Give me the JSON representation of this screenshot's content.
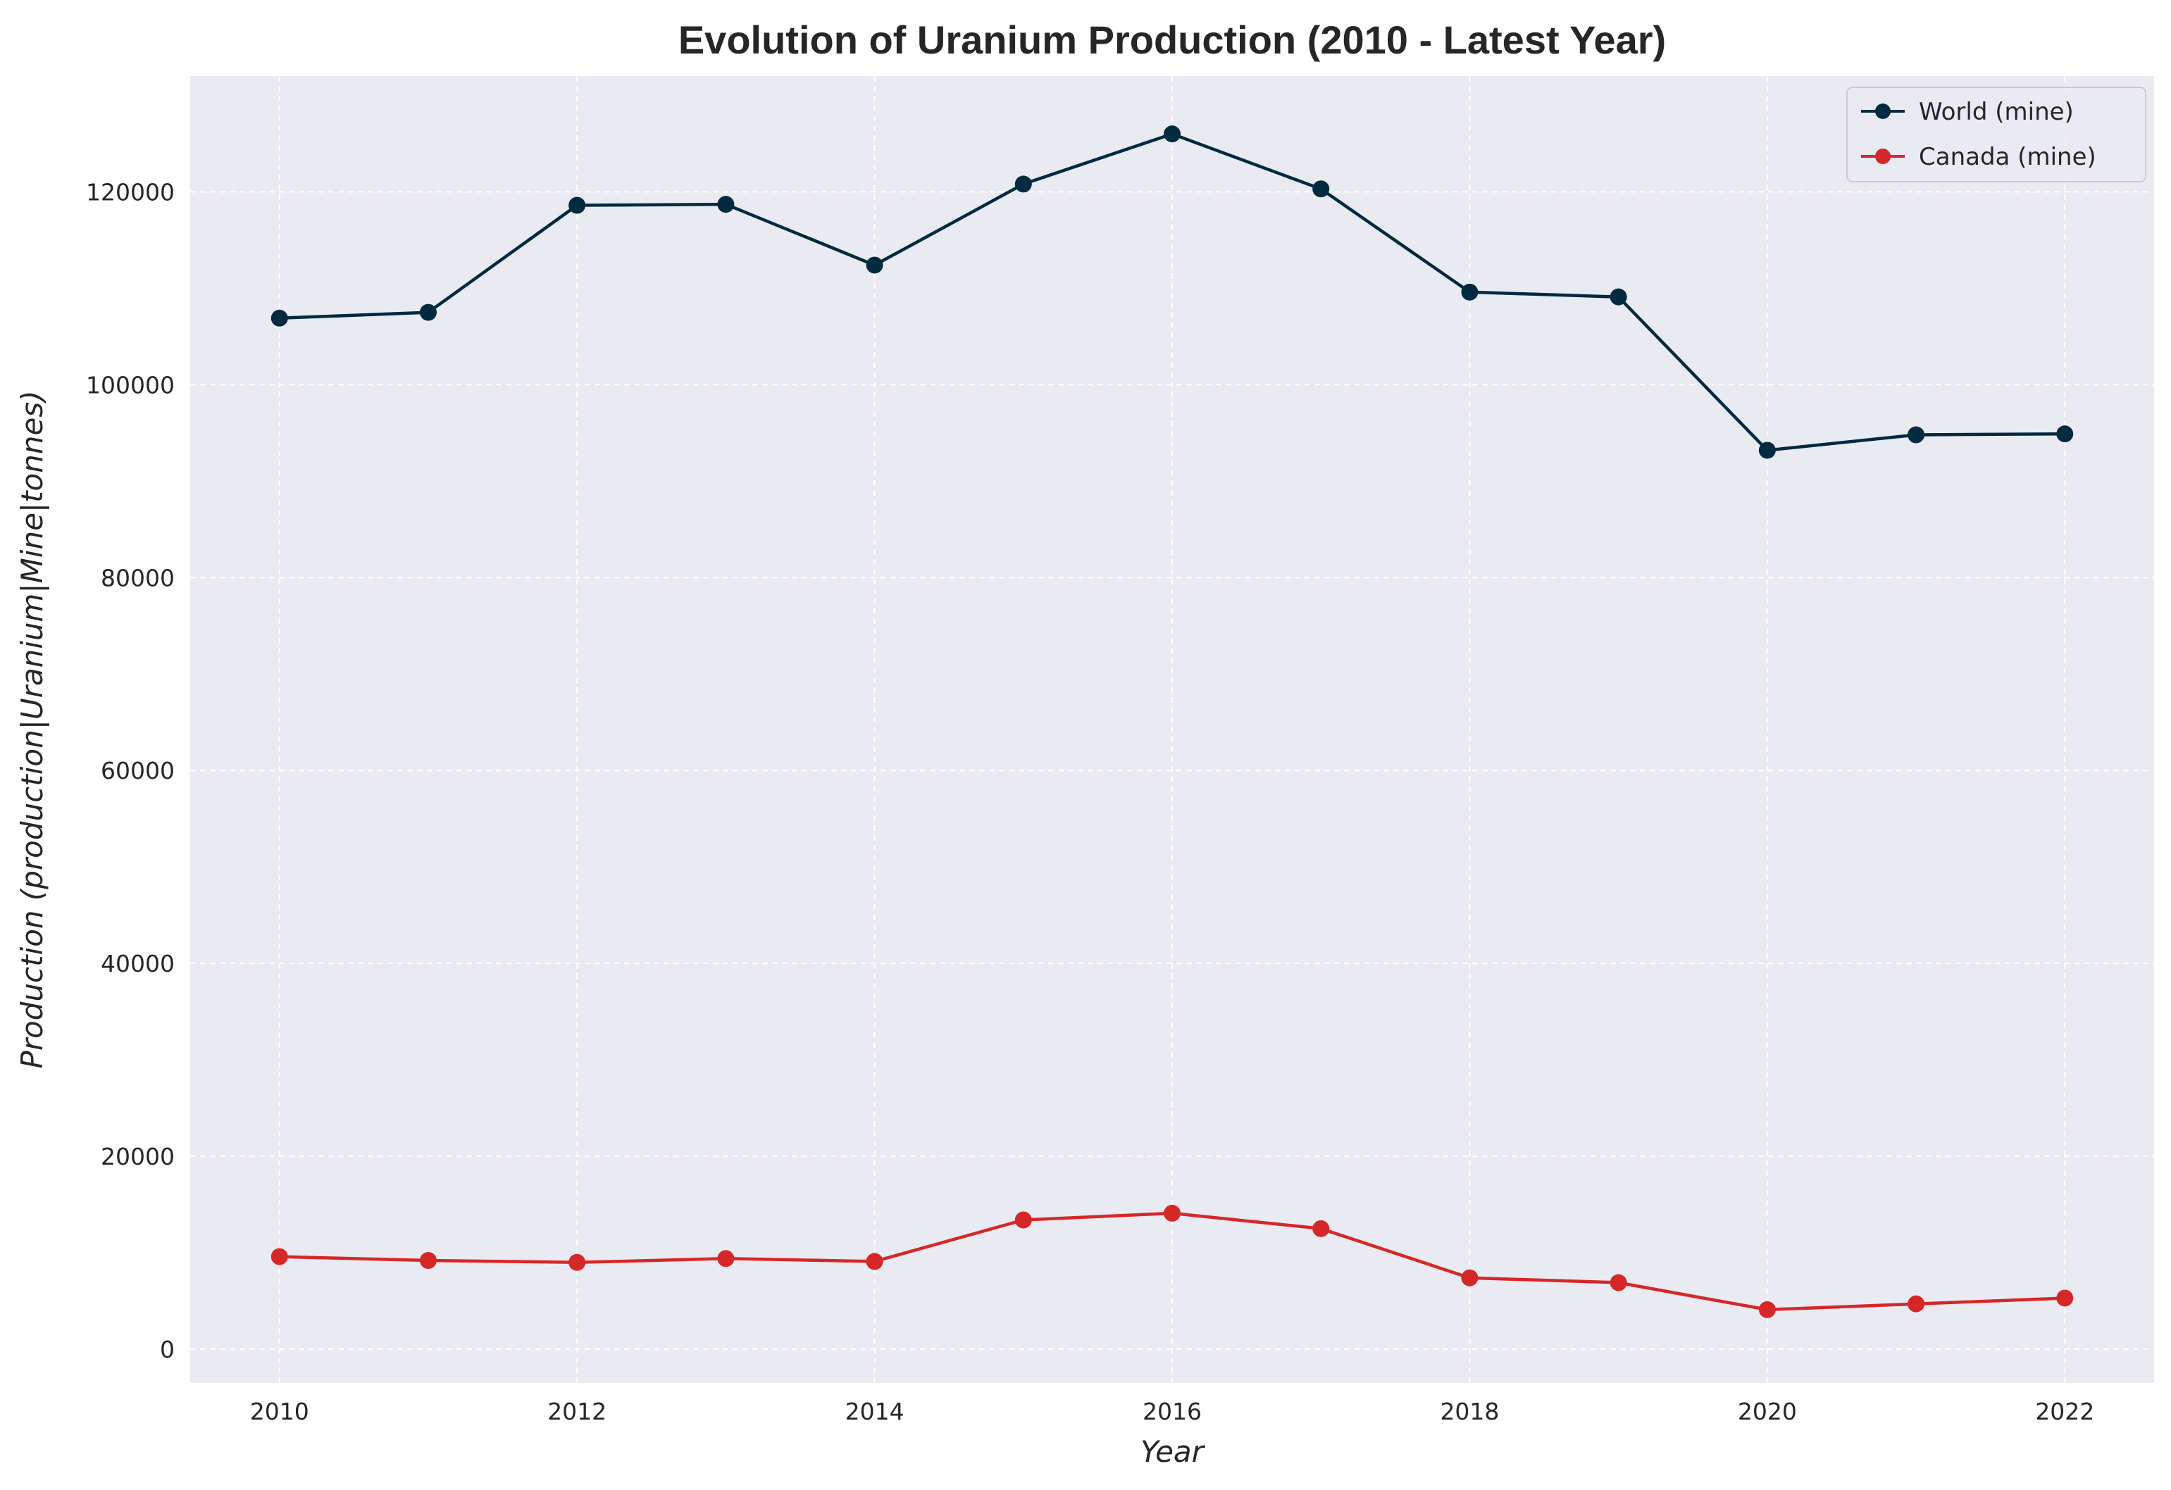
{
  "chart_data": {
    "type": "line",
    "title": "Evolution of Uranium Production (2010 - Latest Year)",
    "xlabel": "Year",
    "ylabel": "Production (production|Uranium|Mine|tonnes)",
    "x": [
      2010,
      2011,
      2012,
      2013,
      2014,
      2015,
      2016,
      2017,
      2018,
      2019,
      2020,
      2021,
      2022
    ],
    "xlim": [
      2009.4,
      2022.6
    ],
    "ylim": [
      -3500,
      132000
    ],
    "x_ticks": [
      2010,
      2012,
      2014,
      2016,
      2018,
      2020,
      2022
    ],
    "y_ticks": [
      0,
      20000,
      40000,
      60000,
      80000,
      100000,
      120000
    ],
    "grid": true,
    "legend_position": "top-right",
    "series": [
      {
        "name": "World (mine)",
        "color": "#002a40",
        "values": [
          106900,
          107500,
          118600,
          118700,
          112400,
          120800,
          126000,
          120300,
          109600,
          109100,
          93200,
          94800,
          94900
        ]
      },
      {
        "name": "Canada (mine)",
        "color": "#d62728",
        "values": [
          9600,
          9200,
          9000,
          9400,
          9100,
          13400,
          14100,
          12500,
          7400,
          6900,
          4100,
          4700,
          5300
        ]
      }
    ],
    "colors": {
      "plot_background": "#eaeaf2",
      "grid": "#ffffff",
      "text": "#262626"
    }
  }
}
